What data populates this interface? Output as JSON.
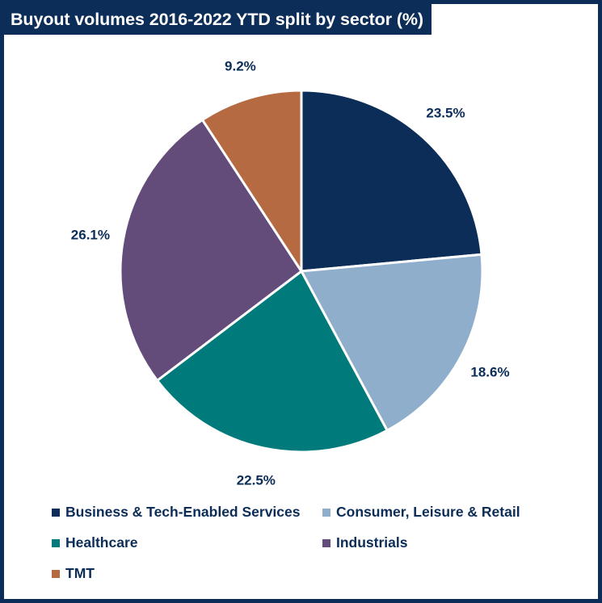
{
  "chart_data": {
    "type": "pie",
    "title": "Buyout volumes 2016-2022 YTD split by sector (%)",
    "categories": [
      "Business & Tech-Enabled Services",
      "Consumer, Leisure & Retail",
      "Healthcare",
      "Industrials",
      "TMT"
    ],
    "values": [
      23.5,
      18.6,
      22.5,
      26.1,
      9.2
    ],
    "data_labels": [
      "23.5%",
      "18.6%",
      "22.5%",
      "26.1%",
      "9.2%"
    ],
    "colors": [
      "#0b2d57",
      "#8eaecc",
      "#007a7a",
      "#644c7a",
      "#b66a42"
    ],
    "start_angle": "12 o'clock",
    "direction": "clockwise",
    "legend_position": "bottom"
  }
}
